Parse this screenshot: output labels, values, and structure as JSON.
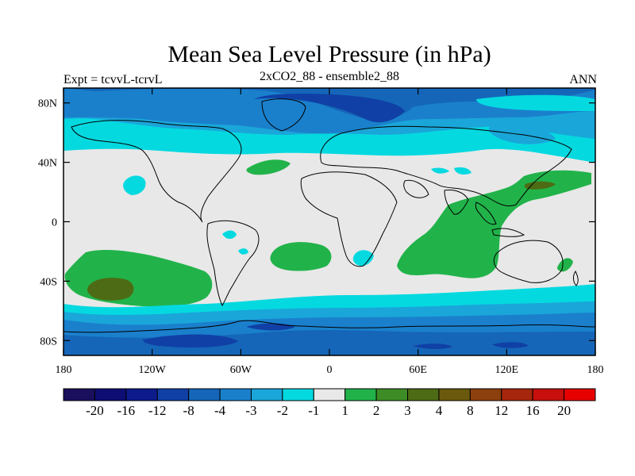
{
  "title": "Mean Sea Level Pressure (in hPa)",
  "left_label": "Expt = tcvvL-tcrvL",
  "center_label": "2xCO2_88 - ensemble2_88",
  "right_label": "ANN",
  "lat_ticks": [
    {
      "lat": 80,
      "label": "80N"
    },
    {
      "lat": 40,
      "label": "40N"
    },
    {
      "lat": 0,
      "label": "0"
    },
    {
      "lat": -40,
      "label": "40S"
    },
    {
      "lat": -80,
      "label": "80S"
    }
  ],
  "lon_ticks": [
    {
      "lon": -180,
      "label": "180"
    },
    {
      "lon": -120,
      "label": "120W"
    },
    {
      "lon": -60,
      "label": "60W"
    },
    {
      "lon": 0,
      "label": "0"
    },
    {
      "lon": 60,
      "label": "60E"
    },
    {
      "lon": 120,
      "label": "120E"
    },
    {
      "lon": 180,
      "label": "180"
    }
  ],
  "colorbar": {
    "colors": [
      "#1a0f5c",
      "#0d0d73",
      "#0d1a8c",
      "#1040a6",
      "#1566b8",
      "#1a80cc",
      "#1aa6d9",
      "#05d9e0",
      "#e8e8e8",
      "#21b34a",
      "#3d8c26",
      "#4d6b14",
      "#6b5a0d",
      "#8c400d",
      "#a6260d",
      "#c7100d",
      "#e60000"
    ],
    "labels": [
      "-20",
      "-16",
      "-12",
      "-8",
      "-4",
      "-3",
      "-2",
      "-1",
      "1",
      "2",
      "3",
      "4",
      "8",
      "12",
      "16",
      "20"
    ]
  }
}
